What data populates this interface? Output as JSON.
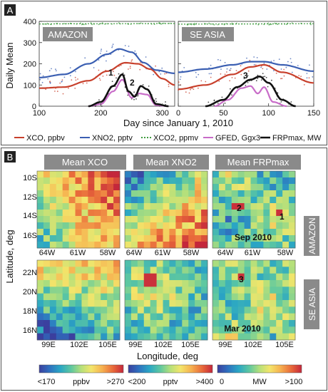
{
  "colors": {
    "xco": "#c8402c",
    "xno2": "#3b5fb2",
    "xco2": "#3e9b3e",
    "gfed": "#c86cc8",
    "frp": "#111111",
    "panel_label_bg": "#8a8a8a",
    "colormap": [
      "#3b3f9e",
      "#2f6fbf",
      "#2aa6c4",
      "#5fc8a0",
      "#b6e07a",
      "#f3e56b",
      "#f6b04f",
      "#e8683a",
      "#c4273b"
    ]
  },
  "panel_a": {
    "label": "A",
    "ylabel": "Daily Mean",
    "xlabel": "Day since January 1, 2010",
    "region_left": "AMAZON",
    "region_right": "SE ASIA",
    "annotations": [
      "1",
      "2",
      "3"
    ],
    "legend": [
      "XCO, ppbv",
      "XNO2, pptv",
      "XCO2, ppmv",
      "GFED, Ggx3",
      "FRPmax, MW"
    ]
  },
  "panel_b": {
    "label": "B",
    "col_titles": [
      "Mean XCO",
      "Mean XNO2",
      "Mean FRPmax"
    ],
    "row_labels": [
      "AMAZON",
      "SE  ASIA"
    ],
    "ylabel": "Latitude, deg",
    "xlabel": "Longitude, deg",
    "date_top": "Sep 2010",
    "date_bottom": "Mar 2010",
    "lat_top": [
      "10S",
      "12S",
      "14S",
      "16S"
    ],
    "lat_bottom": [
      "22N",
      "20N",
      "18N",
      "16N"
    ],
    "lon_top": [
      "64W",
      "61W",
      "58W"
    ],
    "lon_bottom": [
      "99E",
      "102E",
      "105E"
    ],
    "markers_top": [
      "2",
      "1"
    ],
    "marker_bottom": "3",
    "colorbars": [
      {
        "min": "<170",
        "unit": "ppbv",
        "max": ">270"
      },
      {
        "min": "<200",
        "unit": "pptv",
        "max": ">400"
      },
      {
        "min": "0",
        "unit": "MW",
        "max": ">100"
      }
    ]
  },
  "chart_data": [
    {
      "type": "line",
      "region": "AMAZON",
      "xlim": [
        100,
        320
      ],
      "ylim": [
        0,
        400
      ],
      "xticks": [
        100,
        200,
        300
      ],
      "yticks": [
        0,
        100,
        200,
        300,
        400
      ],
      "series": [
        {
          "name": "XCO, ppbv",
          "x": [
            100,
            140,
            180,
            210,
            240,
            260,
            280,
            300,
            320
          ],
          "values": [
            85,
            90,
            120,
            165,
            205,
            200,
            175,
            130,
            100
          ]
        },
        {
          "name": "XNO2, pptv",
          "x": [
            100,
            140,
            180,
            210,
            230,
            250,
            270,
            290,
            320
          ],
          "values": [
            135,
            150,
            200,
            245,
            270,
            255,
            205,
            170,
            155
          ]
        },
        {
          "name": "XCO2, ppmv",
          "x": [
            100,
            200,
            320
          ],
          "values": [
            388,
            389,
            390
          ]
        },
        {
          "name": "GFED, Ggx3",
          "x": [
            180,
            200,
            220,
            235,
            250,
            262,
            275,
            290,
            310
          ],
          "values": [
            0,
            10,
            70,
            125,
            40,
            60,
            55,
            5,
            0
          ]
        },
        {
          "name": "FRPmax, MW",
          "x": [
            180,
            200,
            220,
            235,
            245,
            255,
            265,
            275,
            290,
            310
          ],
          "values": [
            0,
            20,
            95,
            150,
            70,
            45,
            95,
            80,
            10,
            0
          ]
        }
      ]
    },
    {
      "type": "line",
      "region": "SE ASIA",
      "xlim": [
        0,
        150
      ],
      "ylim": [
        0,
        400
      ],
      "xticks": [
        0,
        50,
        100,
        150
      ],
      "yticks": [
        0,
        100,
        200,
        300,
        400
      ],
      "series": [
        {
          "name": "XCO, ppbv",
          "x": [
            0,
            30,
            60,
            80,
            95,
            115,
            150
          ],
          "values": [
            80,
            100,
            150,
            185,
            195,
            160,
            110
          ]
        },
        {
          "name": "XNO2, pptv",
          "x": [
            0,
            30,
            60,
            80,
            95,
            115,
            150
          ],
          "values": [
            160,
            175,
            195,
            210,
            210,
            195,
            165
          ]
        },
        {
          "name": "XCO2, ppmv",
          "x": [
            0,
            75,
            150
          ],
          "values": [
            387,
            388,
            389
          ]
        },
        {
          "name": "GFED, Ggx3",
          "x": [
            40,
            55,
            70,
            80,
            88,
            95,
            105,
            120
          ],
          "values": [
            0,
            30,
            85,
            95,
            60,
            90,
            20,
            0
          ]
        },
        {
          "name": "FRPmax, MW",
          "x": [
            30,
            50,
            65,
            80,
            90,
            100,
            115,
            130
          ],
          "values": [
            0,
            30,
            90,
            125,
            140,
            110,
            30,
            0
          ]
        }
      ]
    },
    {
      "type": "heatmap",
      "title": "Mean XCO",
      "region": "AMAZON",
      "unit": "ppbv",
      "colorbar": [
        "<170",
        ">270"
      ],
      "xticks": [
        "64W",
        "61W",
        "58W"
      ],
      "yticks": [
        "10S",
        "12S",
        "14S",
        "16S"
      ]
    },
    {
      "type": "heatmap",
      "title": "Mean XNO2",
      "region": "AMAZON",
      "unit": "pptv",
      "colorbar": [
        "<200",
        ">400"
      ],
      "xticks": [
        "64W",
        "61W",
        "58W"
      ],
      "yticks": [
        "10S",
        "12S",
        "14S",
        "16S"
      ]
    },
    {
      "type": "heatmap",
      "title": "Mean FRPmax",
      "region": "AMAZON",
      "unit": "MW",
      "colorbar": [
        "0",
        ">100"
      ],
      "xticks": [
        "64W",
        "61W",
        "58W"
      ],
      "yticks": [
        "10S",
        "12S",
        "14S",
        "16S"
      ]
    },
    {
      "type": "heatmap",
      "title": "Mean XCO",
      "region": "SE ASIA",
      "unit": "ppbv",
      "colorbar": [
        "<170",
        ">270"
      ],
      "xticks": [
        "99E",
        "102E",
        "105E"
      ],
      "yticks": [
        "22N",
        "20N",
        "18N",
        "16N"
      ]
    },
    {
      "type": "heatmap",
      "title": "Mean XNO2",
      "region": "SE ASIA",
      "unit": "pptv",
      "colorbar": [
        "<200",
        ">400"
      ],
      "xticks": [
        "99E",
        "102E",
        "105E"
      ],
      "yticks": [
        "22N",
        "20N",
        "18N",
        "16N"
      ]
    },
    {
      "type": "heatmap",
      "title": "Mean FRPmax",
      "region": "SE ASIA",
      "unit": "MW",
      "colorbar": [
        "0",
        ">100"
      ],
      "xticks": [
        "99E",
        "102E",
        "105E"
      ],
      "yticks": [
        "22N",
        "20N",
        "18N",
        "16N"
      ]
    }
  ]
}
